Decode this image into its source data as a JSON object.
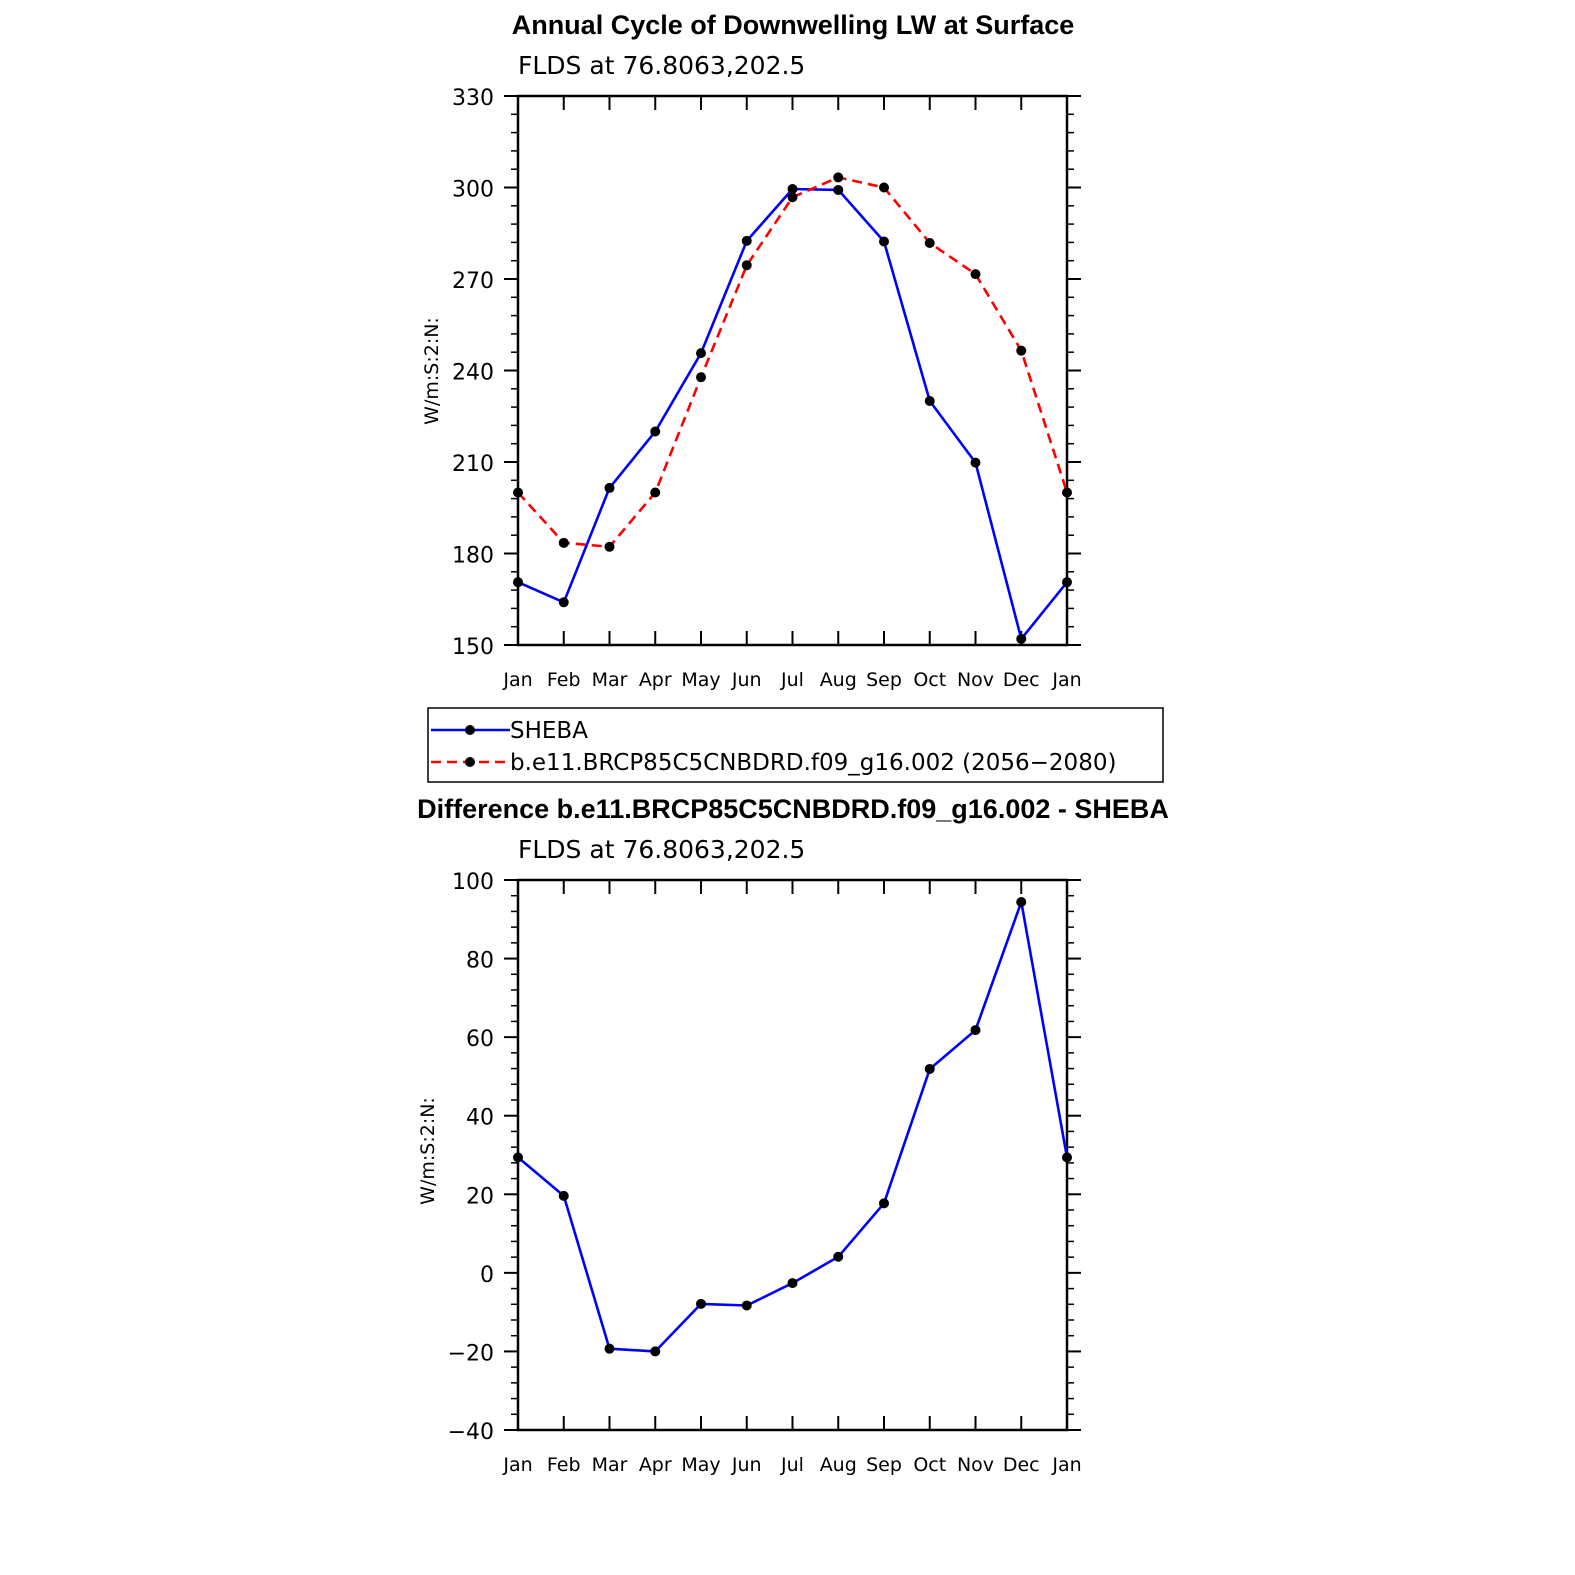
{
  "chart_data": [
    {
      "type": "line",
      "title": "Annual Cycle of Downwelling LW at Surface",
      "subtitle": "FLDS at 76.8063,202.5",
      "ylabel": "W/m:S:2:N:",
      "categories": [
        "Jan",
        "Feb",
        "Mar",
        "Apr",
        "May",
        "Jun",
        "Jul",
        "Aug",
        "Sep",
        "Oct",
        "Nov",
        "Dec",
        "Jan"
      ],
      "ylim": [
        150,
        330
      ],
      "yticks": [
        "150",
        "180",
        "210",
        "240",
        "270",
        "300",
        "330"
      ],
      "series": [
        {
          "name": "SHEBA",
          "color": "#0000ff",
          "style": "solid",
          "values": [
            170.6,
            164.0,
            201.5,
            220.0,
            245.7,
            282.5,
            299.5,
            299.2,
            282.3,
            230.0,
            209.8,
            152.0,
            170.6
          ]
        },
        {
          "name": "b.e11.BRCP85C5CNBDRD.f09_g16.002 (2056−2080)",
          "color": "#ff0000",
          "style": "dashed",
          "values": [
            200.0,
            183.5,
            182.2,
            200.0,
            237.8,
            274.5,
            296.8,
            303.3,
            300.0,
            281.8,
            271.6,
            246.5,
            200.0
          ]
        }
      ],
      "legend": {
        "placement": "below",
        "entries": [
          "SHEBA",
          "b.e11.BRCP85C5CNBDRD.f09_g16.002 (2056−2080)"
        ]
      }
    },
    {
      "type": "line",
      "title": "Difference b.e11.BRCP85C5CNBDRD.f09_g16.002 - SHEBA",
      "subtitle": "FLDS at 76.8063,202.5",
      "ylabel": "W/m:S:2:N:",
      "categories": [
        "Jan",
        "Feb",
        "Mar",
        "Apr",
        "May",
        "Jun",
        "Jul",
        "Aug",
        "Sep",
        "Oct",
        "Nov",
        "Dec",
        "Jan"
      ],
      "ylim": [
        -40,
        100
      ],
      "yticks": [
        "−40",
        "−20",
        "0",
        "20",
        "40",
        "60",
        "80",
        "100"
      ],
      "series": [
        {
          "color": "#0000ff",
          "style": "solid",
          "values": [
            29.4,
            19.6,
            -19.3,
            -20.0,
            -7.9,
            -8.3,
            -2.6,
            4.1,
            17.7,
            51.9,
            61.8,
            94.4,
            29.4
          ]
        }
      ]
    }
  ]
}
